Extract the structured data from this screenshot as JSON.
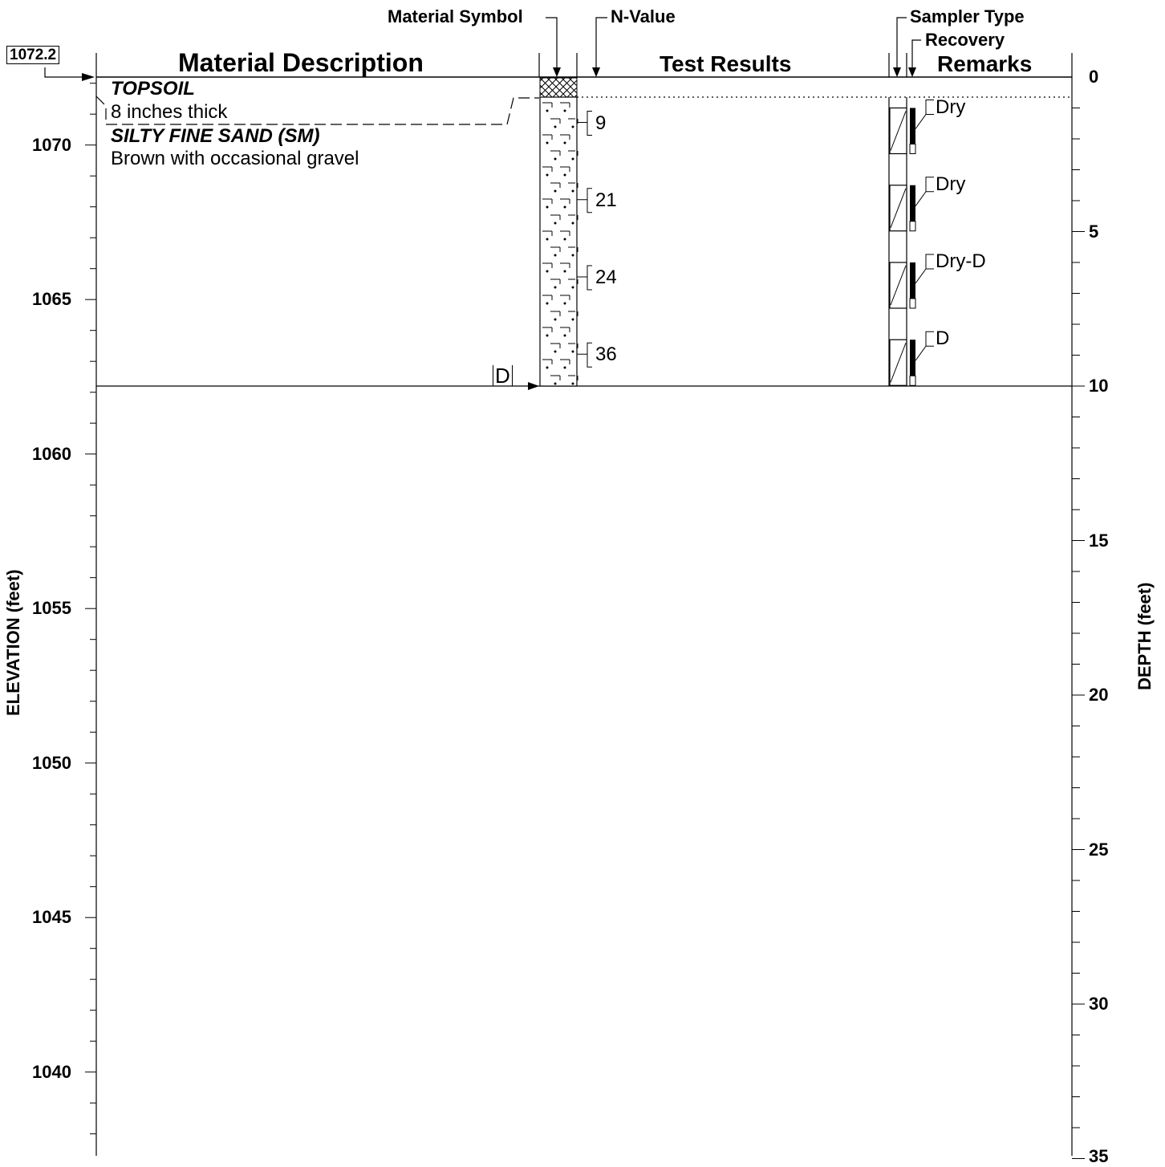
{
  "headers": {
    "material_symbol": "Material Symbol",
    "n_value": "N-Value",
    "sampler_type": "Sampler Type",
    "recovery": "Recovery",
    "material_description": "Material Description",
    "test_results": "Test Results",
    "remarks": "Remarks"
  },
  "surface_elevation": "1072.2",
  "axes": {
    "left_label": "ELEVATION (feet)",
    "right_label": "DEPTH (feet)",
    "elevation_ticks": [
      "1070",
      "1065",
      "1060",
      "1055",
      "1050",
      "1045",
      "1040"
    ],
    "depth_ticks": [
      "0",
      "5",
      "10",
      "15",
      "20",
      "25",
      "30",
      "35"
    ]
  },
  "layers": [
    {
      "name": "TOPSOIL",
      "description": "8 inches thick",
      "top_depth": 0,
      "bottom_depth": 0.67,
      "symbol": "crosshatch"
    },
    {
      "name": "SILTY FINE SAND (SM)",
      "description": "Brown with occasional gravel",
      "top_depth": 0.67,
      "bottom_depth": 10,
      "symbol": "dotted-sand"
    }
  ],
  "samples": [
    {
      "n_value": "9",
      "remark": "Dry"
    },
    {
      "n_value": "21",
      "remark": "Dry"
    },
    {
      "n_value": "24",
      "remark": "Dry-D"
    },
    {
      "n_value": "36",
      "remark": "D"
    }
  ],
  "boring_end_marker": "D"
}
